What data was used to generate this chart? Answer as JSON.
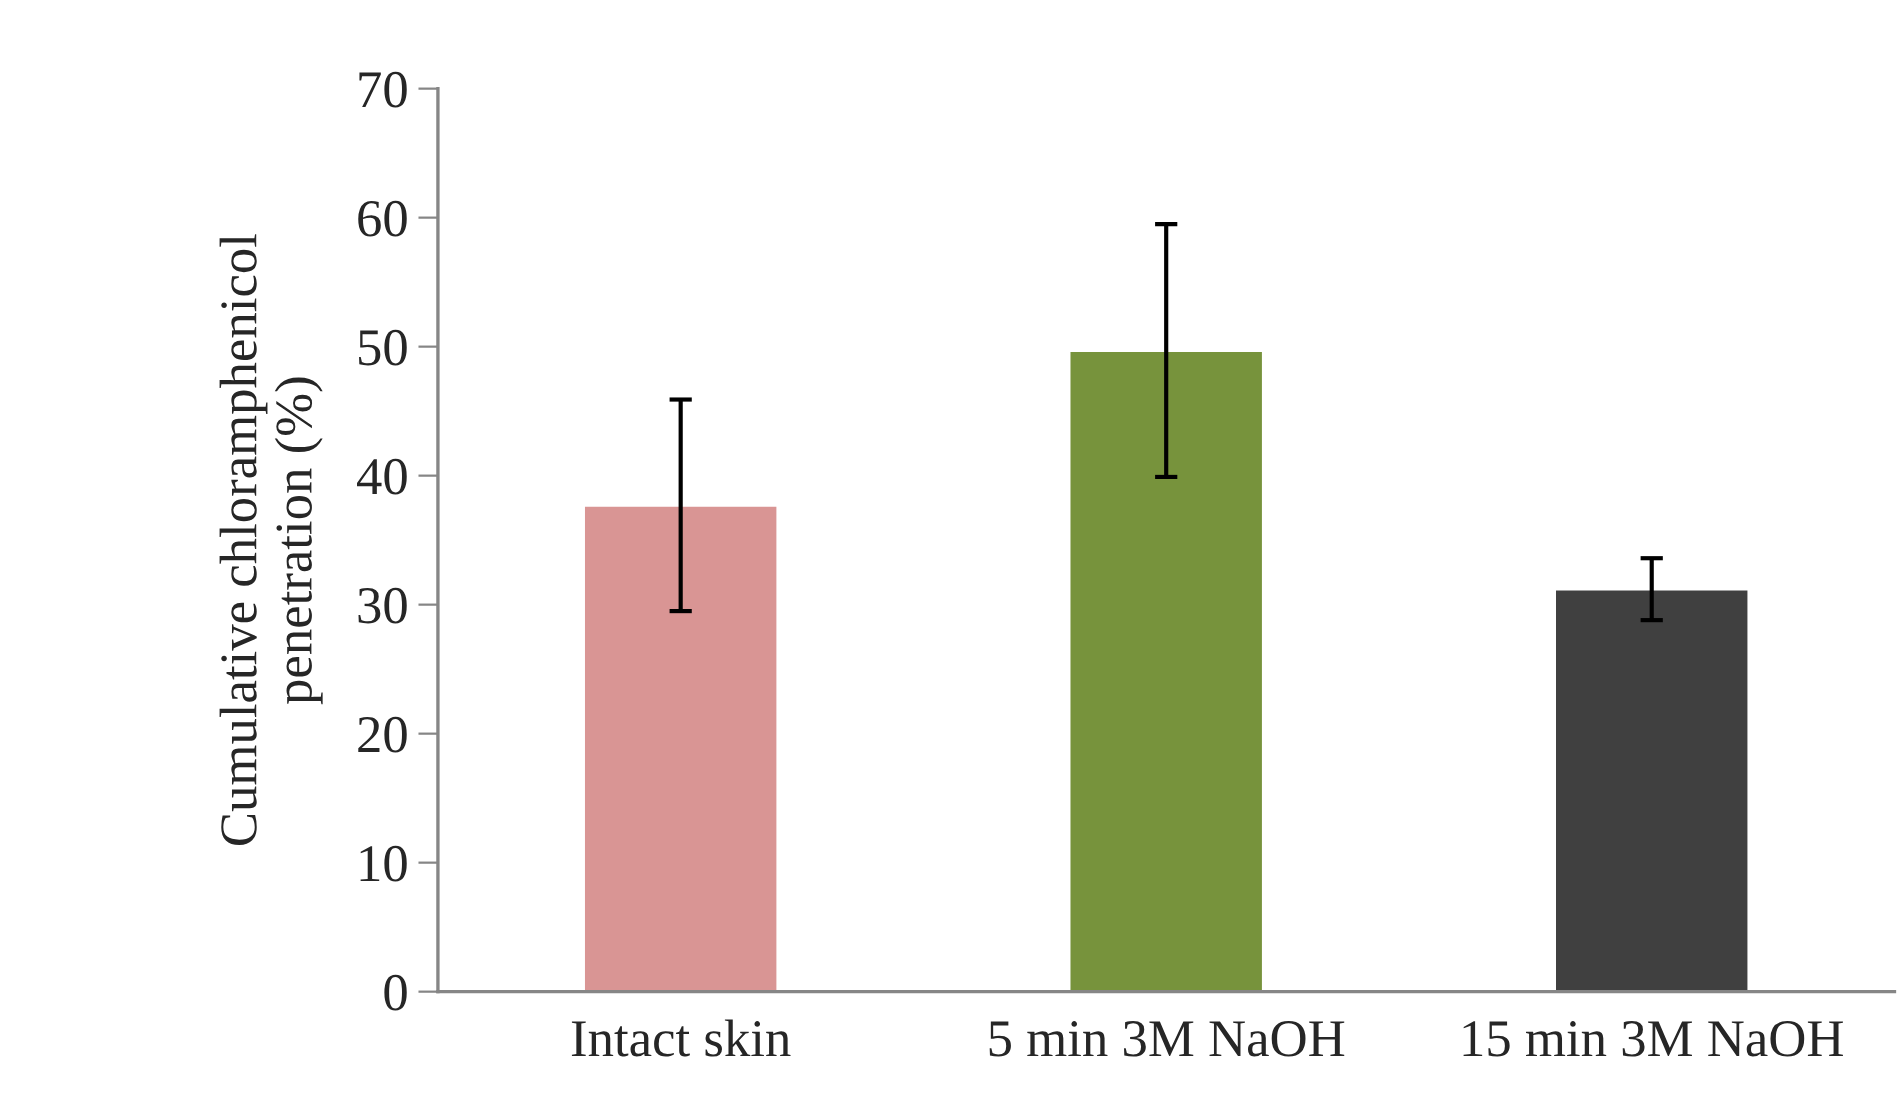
{
  "chart_data": {
    "type": "bar",
    "ylabel": "Cumulative chloramphenicol\npenetration (%)",
    "categories": [
      "Intact skin",
      "5 min 3M NaOH",
      "15 min 3M NaOH"
    ],
    "values": [
      37.7,
      49.7,
      31.2
    ],
    "colors": [
      "#d99594",
      "#77933c",
      "#404040"
    ],
    "errors": [
      8.2,
      9.8,
      2.4
    ],
    "ylim": [
      0,
      70
    ],
    "yticks": [
      0,
      10,
      20,
      30,
      40,
      50,
      60,
      70
    ],
    "grid": false
  }
}
